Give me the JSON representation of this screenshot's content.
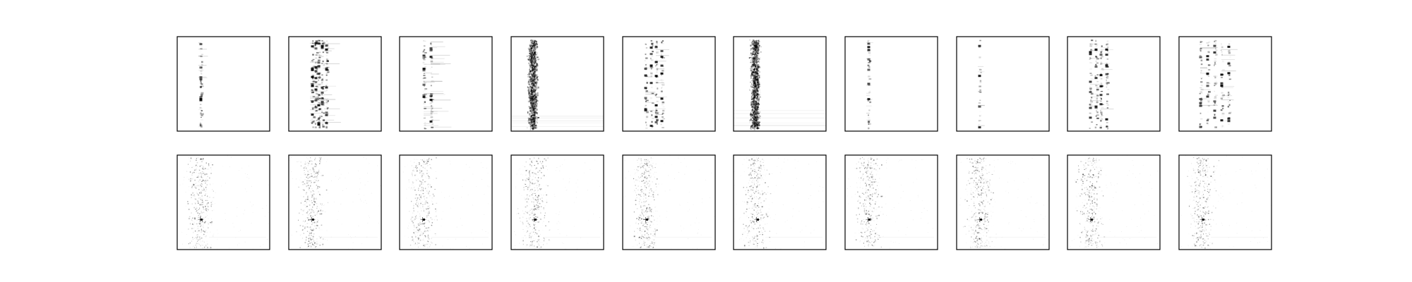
{
  "figure": {
    "colors": {
      "background": "#ffffff",
      "frame": "#000000",
      "ink": "#000000"
    },
    "rows": [
      {
        "panels": [
          {
            "pattern": "single-column-peaks"
          },
          {
            "pattern": "dense-multi-column-peaks"
          },
          {
            "pattern": "column-with-horizontal-streaks"
          },
          {
            "pattern": "diffuse-vertical-band"
          },
          {
            "pattern": "multi-column-peaks"
          },
          {
            "pattern": "diffuse-vertical-band"
          },
          {
            "pattern": "single-column-peaks"
          },
          {
            "pattern": "sparse-single-column-peaks"
          },
          {
            "pattern": "multi-column-peaks"
          },
          {
            "pattern": "spread-multi-column-peaks"
          }
        ]
      },
      {
        "panels": [
          {
            "pattern": "diffuse-cloud"
          },
          {
            "pattern": "diffuse-cloud"
          },
          {
            "pattern": "diffuse-cloud"
          },
          {
            "pattern": "diffuse-cloud"
          },
          {
            "pattern": "diffuse-cloud"
          },
          {
            "pattern": "diffuse-cloud"
          },
          {
            "pattern": "diffuse-cloud"
          },
          {
            "pattern": "diffuse-cloud"
          },
          {
            "pattern": "diffuse-cloud"
          },
          {
            "pattern": "diffuse-cloud"
          }
        ]
      }
    ]
  }
}
